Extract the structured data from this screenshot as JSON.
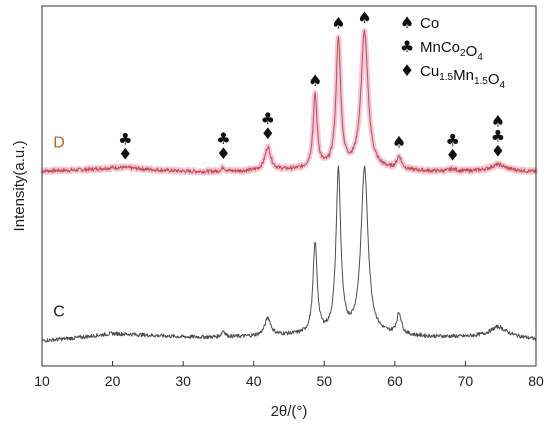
{
  "chart_data": {
    "type": "line",
    "xlabel": "2θ/(°)",
    "ylabel": "Intensity(a.u.)",
    "xlim": [
      10,
      80
    ],
    "xticks": [
      10,
      20,
      30,
      40,
      50,
      60,
      70,
      80
    ],
    "grid": false,
    "y_ticks_shown": false,
    "legend_position": "top-right",
    "legend": [
      {
        "symbol": "♠",
        "base": "Co",
        "parts": [
          [
            "Co",
            false
          ]
        ]
      },
      {
        "symbol": "♣",
        "base": "MnCo2O4",
        "parts": [
          [
            "MnCo",
            false
          ],
          [
            "2",
            true
          ],
          [
            "O",
            false
          ],
          [
            "4",
            true
          ]
        ]
      },
      {
        "symbol": "♦",
        "base": "Cu1.5Mn1.5O4",
        "parts": [
          [
            "Cu",
            false
          ],
          [
            "1.5",
            true
          ],
          [
            "Mn",
            false
          ],
          [
            "1.5",
            true
          ],
          [
            "O",
            false
          ],
          [
            "4",
            true
          ]
        ]
      }
    ],
    "series": [
      {
        "name": "D",
        "color": "#c0504d",
        "halo_color": "#f2b8d0",
        "label_color": "#b5651d",
        "baseline": [
          [
            10,
            0.38
          ],
          [
            15,
            0.4
          ],
          [
            20,
            0.44
          ],
          [
            25,
            0.41
          ],
          [
            30,
            0.37
          ],
          [
            35,
            0.36
          ],
          [
            40,
            0.38
          ],
          [
            45,
            0.4
          ],
          [
            50,
            0.41
          ],
          [
            55,
            0.4
          ],
          [
            60,
            0.39
          ],
          [
            65,
            0.37
          ],
          [
            70,
            0.37
          ],
          [
            75,
            0.4
          ],
          [
            80,
            0.36
          ]
        ],
        "peaks": [
          {
            "x": 21.8,
            "h": 0.03,
            "w": 2.5
          },
          {
            "x": 35.7,
            "h": 0.1,
            "w": 0.3
          },
          {
            "x": 42.0,
            "h": 0.55,
            "w": 0.5
          },
          {
            "x": 48.7,
            "h": 1.73,
            "w": 0.35
          },
          {
            "x": 52.0,
            "h": 3.06,
            "w": 0.4
          },
          {
            "x": 55.7,
            "h": 3.26,
            "w": 0.6
          },
          {
            "x": 60.6,
            "h": 0.3,
            "w": 0.4
          },
          {
            "x": 68.2,
            "h": 0.05,
            "w": 0.5
          },
          {
            "x": 74.6,
            "h": 0.13,
            "w": 1.2
          }
        ]
      },
      {
        "name": "C",
        "color": "#4d4d4d",
        "label_color": "#222222",
        "baseline": [
          [
            10,
            0.05
          ],
          [
            15,
            0.12
          ],
          [
            20,
            0.22
          ],
          [
            25,
            0.18
          ],
          [
            30,
            0.14
          ],
          [
            35,
            0.13
          ],
          [
            40,
            0.15
          ],
          [
            45,
            0.18
          ],
          [
            50,
            0.18
          ],
          [
            55,
            0.17
          ],
          [
            60,
            0.16
          ],
          [
            65,
            0.14
          ],
          [
            70,
            0.14
          ],
          [
            75,
            0.2
          ],
          [
            80,
            0.08
          ]
        ],
        "peaks": [
          {
            "x": 35.7,
            "h": 0.15,
            "w": 0.3
          },
          {
            "x": 42.0,
            "h": 0.42,
            "w": 0.5
          },
          {
            "x": 48.7,
            "h": 2.15,
            "w": 0.35
          },
          {
            "x": 52.0,
            "h": 3.88,
            "w": 0.4
          },
          {
            "x": 55.7,
            "h": 3.95,
            "w": 0.6
          },
          {
            "x": 60.6,
            "h": 0.5,
            "w": 0.4
          },
          {
            "x": 74.6,
            "h": 0.18,
            "w": 1.2
          }
        ]
      }
    ],
    "phase_markers": [
      {
        "x": 21.8,
        "symbols": [
          "♣",
          "♦"
        ]
      },
      {
        "x": 35.7,
        "symbols": [
          "♣",
          "♦"
        ]
      },
      {
        "x": 42.0,
        "symbols": [
          "♣",
          "♦"
        ]
      },
      {
        "x": 48.7,
        "symbols": [
          "♠"
        ]
      },
      {
        "x": 52.0,
        "symbols": [
          "♠"
        ]
      },
      {
        "x": 55.7,
        "symbols": [
          "♠"
        ]
      },
      {
        "x": 60.6,
        "symbols": [
          "♠"
        ]
      },
      {
        "x": 68.2,
        "symbols": [
          "♣",
          "♦"
        ]
      },
      {
        "x": 74.6,
        "symbols": [
          "♠",
          "♣",
          "♦"
        ]
      }
    ]
  }
}
